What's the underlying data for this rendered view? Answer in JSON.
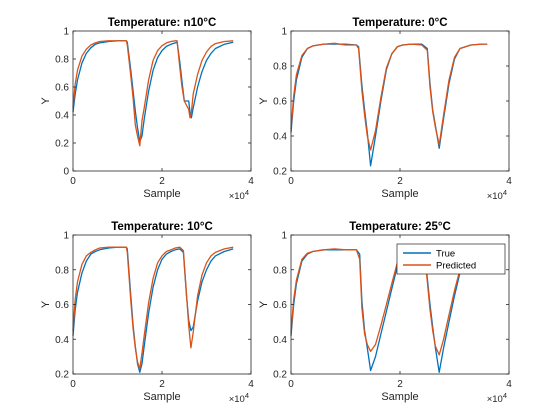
{
  "chart_data": [
    {
      "type": "line",
      "title": "Temperature: n10°C",
      "xlabel": "Sample",
      "ylabel": "Y",
      "x_exponent": "×10^4",
      "xlim": [
        0,
        40000
      ],
      "ylim": [
        0,
        1
      ],
      "xticks": [
        "0",
        "2",
        "4"
      ],
      "yticks": [
        "0",
        "0.2",
        "0.4",
        "0.6",
        "0.8",
        "1"
      ],
      "series": [
        {
          "name": "True",
          "color": "#0072BD",
          "x": [
            0,
            500,
            1000,
            2000,
            3000,
            4000,
            5000,
            6000,
            8000,
            10000,
            12000,
            12200,
            13000,
            13500,
            14000,
            14500,
            15000,
            15500,
            16000,
            17000,
            18000,
            19000,
            20000,
            21000,
            22000,
            23000,
            23400,
            24000,
            24500,
            25000,
            26000,
            26300,
            26600,
            27000,
            28000,
            29000,
            30000,
            31000,
            32000,
            34000,
            36000
          ],
          "y": [
            0.42,
            0.55,
            0.65,
            0.77,
            0.84,
            0.88,
            0.905,
            0.915,
            0.925,
            0.93,
            0.93,
            0.92,
            0.72,
            0.57,
            0.43,
            0.31,
            0.21,
            0.25,
            0.37,
            0.57,
            0.72,
            0.81,
            0.86,
            0.89,
            0.905,
            0.915,
            0.92,
            0.78,
            0.64,
            0.5,
            0.5,
            0.42,
            0.38,
            0.45,
            0.6,
            0.71,
            0.79,
            0.84,
            0.875,
            0.905,
            0.92
          ]
        },
        {
          "name": "Predicted",
          "color": "#D95319",
          "x": [
            0,
            500,
            1000,
            2000,
            3000,
            4000,
            5000,
            6000,
            8000,
            10000,
            12000,
            12200,
            13000,
            13500,
            14000,
            14500,
            15000,
            15500,
            16000,
            17000,
            18000,
            19000,
            20000,
            21000,
            22000,
            23000,
            23400,
            24000,
            24500,
            25000,
            26000,
            26300,
            26600,
            27000,
            28000,
            29000,
            30000,
            31000,
            32000,
            34000,
            36000
          ],
          "y": [
            0.45,
            0.62,
            0.72,
            0.82,
            0.87,
            0.9,
            0.915,
            0.925,
            0.93,
            0.93,
            0.93,
            0.9,
            0.68,
            0.52,
            0.33,
            0.25,
            0.18,
            0.36,
            0.45,
            0.65,
            0.79,
            0.86,
            0.895,
            0.915,
            0.925,
            0.93,
            0.93,
            0.74,
            0.6,
            0.5,
            0.44,
            0.38,
            0.42,
            0.55,
            0.69,
            0.79,
            0.85,
            0.89,
            0.91,
            0.925,
            0.93
          ]
        }
      ]
    },
    {
      "type": "line",
      "title": "Temperature: 0°C",
      "xlabel": "Sample",
      "ylabel": "Y",
      "x_exponent": "×10^4",
      "xlim": [
        0,
        40000
      ],
      "ylim": [
        0.2,
        1
      ],
      "xticks": [
        "0",
        "2",
        "4"
      ],
      "yticks": [
        "0.2",
        "0.4",
        "0.6",
        "0.8",
        "1"
      ],
      "series": [
        {
          "name": "True",
          "color": "#0072BD",
          "x": [
            0,
            500,
            1000,
            2000,
            3000,
            4000,
            5000,
            6000,
            8000,
            10000,
            12000,
            12400,
            13000,
            13500,
            14000,
            14600,
            15500,
            16500,
            17500,
            18500,
            19500,
            20500,
            22000,
            24000,
            25000,
            25500,
            26000,
            26500,
            27200,
            28000,
            29000,
            30000,
            31000,
            33000,
            35000,
            36000
          ],
          "y": [
            0.42,
            0.6,
            0.72,
            0.85,
            0.9,
            0.915,
            0.92,
            0.925,
            0.925,
            0.925,
            0.92,
            0.91,
            0.69,
            0.55,
            0.42,
            0.23,
            0.4,
            0.6,
            0.78,
            0.87,
            0.91,
            0.92,
            0.925,
            0.925,
            0.9,
            0.7,
            0.55,
            0.46,
            0.33,
            0.5,
            0.7,
            0.84,
            0.9,
            0.92,
            0.925,
            0.925
          ]
        },
        {
          "name": "Predicted",
          "color": "#D95319",
          "x": [
            0,
            500,
            1000,
            2000,
            3000,
            4000,
            5000,
            6000,
            8000,
            10000,
            12000,
            12400,
            13000,
            13500,
            14000,
            14600,
            15500,
            16500,
            17500,
            18500,
            19500,
            20500,
            22000,
            24000,
            25000,
            25500,
            26000,
            26500,
            27200,
            28000,
            29000,
            30000,
            31000,
            33000,
            35000,
            36000
          ],
          "y": [
            0.44,
            0.63,
            0.75,
            0.86,
            0.9,
            0.915,
            0.92,
            0.925,
            0.93,
            0.92,
            0.92,
            0.9,
            0.66,
            0.52,
            0.4,
            0.32,
            0.43,
            0.62,
            0.79,
            0.87,
            0.91,
            0.92,
            0.925,
            0.92,
            0.89,
            0.68,
            0.54,
            0.45,
            0.35,
            0.52,
            0.72,
            0.85,
            0.9,
            0.92,
            0.925,
            0.925
          ]
        }
      ]
    },
    {
      "type": "line",
      "title": "Temperature: 10°C",
      "xlabel": "Sample",
      "ylabel": "Y",
      "x_exponent": "×10^4",
      "xlim": [
        0,
        40000
      ],
      "ylim": [
        0.2,
        1
      ],
      "xticks": [
        "0",
        "2",
        "4"
      ],
      "yticks": [
        "0.2",
        "0.4",
        "0.6",
        "0.8",
        "1"
      ],
      "series": [
        {
          "name": "True",
          "color": "#0072BD",
          "x": [
            0,
            500,
            1000,
            2000,
            3000,
            4000,
            5000,
            6000,
            8000,
            10000,
            12000,
            12200,
            13000,
            13500,
            14000,
            14500,
            15000,
            15500,
            16000,
            17000,
            18000,
            19000,
            20000,
            21000,
            22000,
            23000,
            24000,
            24800,
            25500,
            26000,
            26500,
            27000,
            28000,
            29000,
            30000,
            31000,
            32000,
            34000,
            36000
          ],
          "y": [
            0.42,
            0.57,
            0.67,
            0.78,
            0.85,
            0.89,
            0.905,
            0.915,
            0.925,
            0.93,
            0.93,
            0.92,
            0.65,
            0.48,
            0.36,
            0.26,
            0.21,
            0.26,
            0.36,
            0.55,
            0.7,
            0.8,
            0.86,
            0.89,
            0.905,
            0.915,
            0.92,
            0.9,
            0.65,
            0.51,
            0.45,
            0.47,
            0.62,
            0.73,
            0.8,
            0.85,
            0.88,
            0.905,
            0.92
          ]
        },
        {
          "name": "Predicted",
          "color": "#D95319",
          "x": [
            0,
            500,
            1000,
            2000,
            3000,
            4000,
            5000,
            6000,
            8000,
            10000,
            12000,
            12200,
            13000,
            13500,
            14000,
            14500,
            15000,
            15500,
            16000,
            17000,
            18000,
            19000,
            20000,
            21000,
            22000,
            23000,
            24000,
            24800,
            25500,
            26000,
            26500,
            27000,
            28000,
            29000,
            30000,
            31000,
            32000,
            34000,
            36000
          ],
          "y": [
            0.45,
            0.63,
            0.73,
            0.83,
            0.88,
            0.9,
            0.915,
            0.925,
            0.93,
            0.93,
            0.93,
            0.9,
            0.62,
            0.46,
            0.35,
            0.27,
            0.23,
            0.32,
            0.42,
            0.61,
            0.75,
            0.84,
            0.88,
            0.905,
            0.915,
            0.925,
            0.93,
            0.91,
            0.66,
            0.48,
            0.35,
            0.44,
            0.65,
            0.77,
            0.84,
            0.88,
            0.9,
            0.92,
            0.93
          ]
        }
      ]
    },
    {
      "type": "line",
      "title": "Temperature: 25°C",
      "xlabel": "Sample",
      "ylabel": "Y",
      "x_exponent": "×10^4",
      "xlim": [
        0,
        40000
      ],
      "ylim": [
        0.2,
        1
      ],
      "xticks": [
        "0",
        "2",
        "4"
      ],
      "yticks": [
        "0.2",
        "0.4",
        "0.6",
        "0.8",
        "1"
      ],
      "legend": {
        "location": "top-right",
        "entries": [
          "True",
          "Predicted"
        ]
      },
      "series": [
        {
          "name": "True",
          "color": "#0072BD",
          "x": [
            0,
            500,
            1000,
            2000,
            3000,
            4000,
            5000,
            6000,
            8000,
            10000,
            12000,
            12600,
            13000,
            13500,
            14000,
            14600,
            15500,
            16500,
            17500,
            18500,
            19500,
            20500,
            21000,
            23000,
            24500,
            25500,
            26000,
            26500,
            27200,
            28000,
            29000,
            30000,
            31500,
            33000,
            35000,
            36000
          ],
          "y": [
            0.42,
            0.6,
            0.72,
            0.85,
            0.89,
            0.905,
            0.91,
            0.915,
            0.915,
            0.915,
            0.915,
            0.89,
            0.62,
            0.45,
            0.35,
            0.22,
            0.3,
            0.43,
            0.56,
            0.69,
            0.82,
            0.9,
            0.91,
            0.915,
            0.91,
            0.6,
            0.47,
            0.35,
            0.21,
            0.35,
            0.5,
            0.65,
            0.85,
            0.9,
            0.91,
            0.91
          ]
        },
        {
          "name": "Predicted",
          "color": "#D95319",
          "x": [
            0,
            500,
            1000,
            2000,
            3000,
            4000,
            5000,
            6000,
            8000,
            10000,
            12000,
            12600,
            13000,
            13500,
            14000,
            14600,
            15500,
            16500,
            17500,
            18500,
            19500,
            20500,
            21000,
            23000,
            24500,
            25500,
            26000,
            26500,
            27200,
            28000,
            29000,
            30000,
            31500,
            33000,
            35000,
            36000
          ],
          "y": [
            0.44,
            0.63,
            0.74,
            0.86,
            0.895,
            0.905,
            0.91,
            0.915,
            0.92,
            0.915,
            0.915,
            0.86,
            0.58,
            0.43,
            0.37,
            0.33,
            0.37,
            0.48,
            0.6,
            0.72,
            0.84,
            0.905,
            0.91,
            0.915,
            0.9,
            0.57,
            0.45,
            0.36,
            0.31,
            0.4,
            0.54,
            0.68,
            0.86,
            0.9,
            0.91,
            0.915
          ]
        }
      ]
    }
  ]
}
